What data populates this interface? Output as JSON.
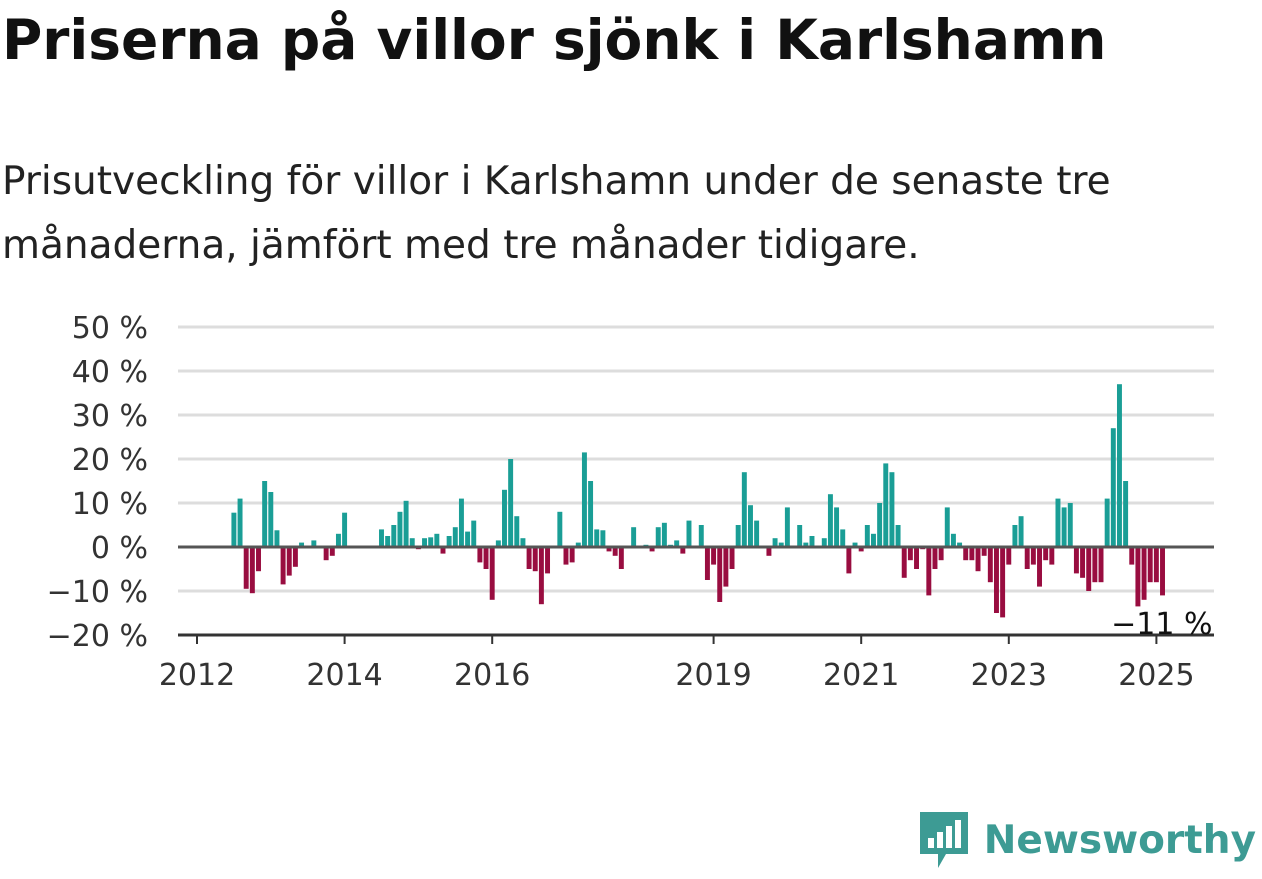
{
  "title": "Priserna på villor sjönk i Karlshamn",
  "subtitle": "Prisutveckling för villor i Karlshamn under de senaste tre månaderna, jämfört med tre månader tidigare.",
  "brand": {
    "name": "Newsworthy",
    "icon": "bar-chart-pin-icon",
    "color": "#3d9b94"
  },
  "colors": {
    "positive": "#1a9e96",
    "negative": "#990d40",
    "grid": "#dddddd",
    "zero": "#555555",
    "axis": "#333333"
  },
  "chart_data": {
    "type": "bar",
    "ylim": [
      -20,
      50
    ],
    "yticks": [
      50,
      40,
      30,
      20,
      10,
      0,
      -10,
      -20
    ],
    "ytick_labels": [
      "50 %",
      "40 %",
      "30 %",
      "20 %",
      "10 %",
      "0 %",
      "−10 %",
      "−20 %"
    ],
    "xticks": [
      2012,
      2014,
      2016,
      2019,
      2021,
      2023,
      2025
    ],
    "xtick_labels": [
      "2012",
      "2014",
      "2016",
      "2019",
      "2021",
      "2023",
      "2025"
    ],
    "x_start": 2012.0,
    "x_step": 0.08333,
    "grid": true,
    "last_value_label": "−11 %",
    "values": [
      null,
      null,
      null,
      null,
      null,
      null,
      7.8,
      11.0,
      -9.5,
      -10.5,
      -5.5,
      15.0,
      12.5,
      3.8,
      -8.5,
      -6.5,
      -4.5,
      1.0,
      0.2,
      1.5,
      0.0,
      -3.0,
      -2.0,
      3.0,
      7.8,
      0.0,
      0.0,
      0.0,
      0.0,
      0.0,
      4.0,
      2.5,
      5.0,
      8.0,
      10.5,
      2.0,
      -0.5,
      2.0,
      2.2,
      3.0,
      -1.5,
      2.5,
      4.5,
      11.0,
      3.5,
      6.0,
      -3.5,
      -5.0,
      -12.0,
      1.5,
      13.0,
      20.0,
      7.0,
      2.0,
      -5.0,
      -5.5,
      -13.0,
      -6.0,
      0.0,
      8.0,
      -4.0,
      -3.5,
      1.0,
      21.5,
      15.0,
      4.0,
      3.8,
      -1.0,
      -2.0,
      -5.0,
      0.0,
      4.5,
      0.0,
      0.5,
      -1.0,
      4.5,
      5.5,
      0.5,
      1.5,
      -1.5,
      6.0,
      0.0,
      5.0,
      -7.5,
      -4.0,
      -12.5,
      -9.0,
      -5.0,
      5.0,
      17.0,
      9.5,
      6.0,
      0.0,
      -2.0,
      2.0,
      1.0,
      9.0,
      0.0,
      5.0,
      1.0,
      2.5,
      0.0,
      2.0,
      12.0,
      9.0,
      4.0,
      -6.0,
      1.0,
      -1.0,
      5.0,
      3.0,
      10.0,
      19.0,
      17.0,
      5.0,
      -7.0,
      -3.0,
      -5.0,
      -0.5,
      -11.0,
      -5.0,
      -3.0,
      9.0,
      3.0,
      1.0,
      -3.0,
      -3.0,
      -5.5,
      -2.0,
      -8.0,
      -15.0,
      -16.0,
      -4.0,
      5.0,
      7.0,
      -5.0,
      -4.0,
      -9.0,
      -3.0,
      -4.0,
      11.0,
      9.0,
      10.0,
      -6.0,
      -7.0,
      -10.0,
      -8.0,
      -8.0,
      11.0,
      27.0,
      37.0,
      15.0,
      -4.0,
      -13.5,
      -12.0,
      -8.0,
      -8.0,
      -11.0
    ]
  }
}
